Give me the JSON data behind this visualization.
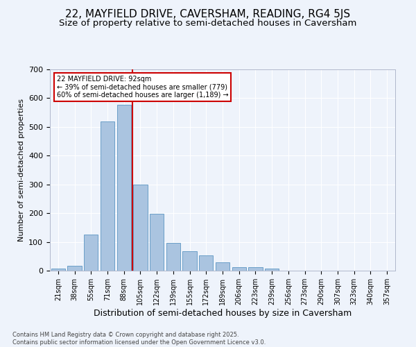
{
  "title": "22, MAYFIELD DRIVE, CAVERSHAM, READING, RG4 5JS",
  "subtitle": "Size of property relative to semi-detached houses in Caversham",
  "xlabel": "Distribution of semi-detached houses by size in Caversham",
  "ylabel": "Number of semi-detached properties",
  "bar_labels": [
    "21sqm",
    "38sqm",
    "55sqm",
    "71sqm",
    "88sqm",
    "105sqm",
    "122sqm",
    "139sqm",
    "155sqm",
    "172sqm",
    "189sqm",
    "206sqm",
    "223sqm",
    "239sqm",
    "256sqm",
    "273sqm",
    "290sqm",
    "307sqm",
    "323sqm",
    "340sqm",
    "357sqm"
  ],
  "bar_values": [
    8,
    17,
    125,
    520,
    578,
    300,
    197,
    97,
    68,
    53,
    28,
    13,
    11,
    8,
    0,
    0,
    0,
    0,
    0,
    0,
    0
  ],
  "bar_color": "#aac4e0",
  "bar_edge_color": "#6a9fc8",
  "annotation_title": "22 MAYFIELD DRIVE: 92sqm",
  "annotation_line1": "← 39% of semi-detached houses are smaller (779)",
  "annotation_line2": "60% of semi-detached houses are larger (1,189) →",
  "annotation_box_color": "#ffffff",
  "annotation_box_edge": "#cc0000",
  "vline_color": "#cc0000",
  "vline_x": 4.5,
  "ylim": [
    0,
    700
  ],
  "footer1": "Contains HM Land Registry data © Crown copyright and database right 2025.",
  "footer2": "Contains public sector information licensed under the Open Government Licence v3.0.",
  "bg_color": "#eef3fb",
  "plot_bg_color": "#eef3fb",
  "grid_color": "#ffffff",
  "title_fontsize": 11,
  "subtitle_fontsize": 9.5,
  "ylabel_fontsize": 8,
  "xlabel_fontsize": 9,
  "tick_fontsize": 7,
  "footer_fontsize": 6
}
